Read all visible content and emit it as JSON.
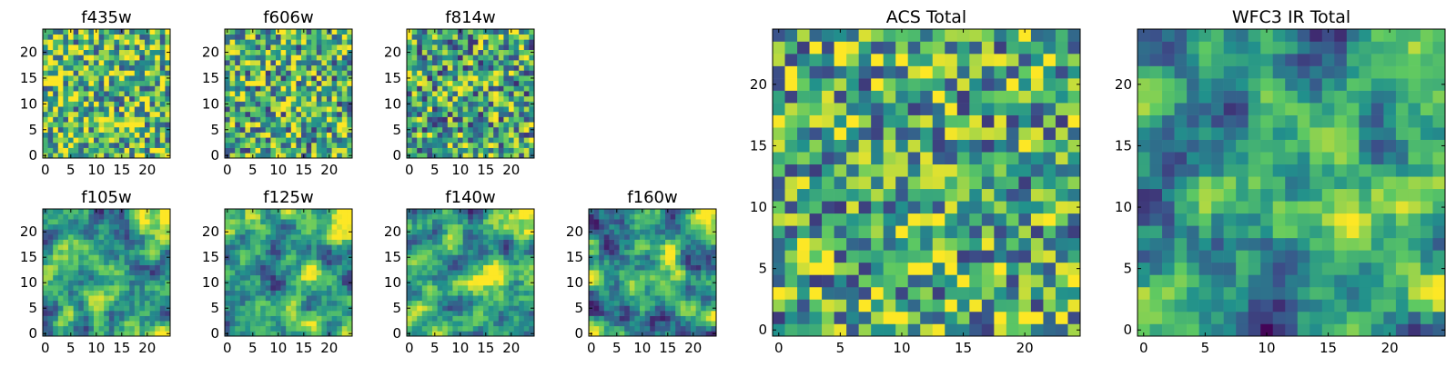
{
  "chart_data": [
    {
      "type": "heatmap",
      "title": "f435w",
      "grid_size": 25,
      "xlim": [
        0,
        24
      ],
      "ylim": [
        0,
        24
      ],
      "xticks": [
        0,
        5,
        10,
        15,
        20
      ],
      "yticks": [
        0,
        5,
        10,
        15,
        20
      ],
      "texture": "noise",
      "mean_level": 0.68
    },
    {
      "type": "heatmap",
      "title": "f606w",
      "grid_size": 25,
      "xlim": [
        0,
        24
      ],
      "ylim": [
        0,
        24
      ],
      "xticks": [
        0,
        5,
        10,
        15,
        20
      ],
      "yticks": [
        0,
        5,
        10,
        15,
        20
      ],
      "texture": "noise",
      "mean_level": 0.62
    },
    {
      "type": "heatmap",
      "title": "f814w",
      "grid_size": 25,
      "xlim": [
        0,
        24
      ],
      "ylim": [
        0,
        24
      ],
      "xticks": [
        0,
        5,
        10,
        15,
        20
      ],
      "yticks": [
        0,
        5,
        10,
        15,
        20
      ],
      "texture": "noise",
      "mean_level": 0.58
    },
    {
      "type": "heatmap",
      "title": "f105w",
      "grid_size": 25,
      "xlim": [
        0,
        24
      ],
      "ylim": [
        0,
        24
      ],
      "xticks": [
        0,
        5,
        10,
        15,
        20
      ],
      "yticks": [
        0,
        5,
        10,
        15,
        20
      ],
      "texture": "smooth",
      "mean_level": 0.5
    },
    {
      "type": "heatmap",
      "title": "f125w",
      "grid_size": 25,
      "xlim": [
        0,
        24
      ],
      "ylim": [
        0,
        24
      ],
      "xticks": [
        0,
        5,
        10,
        15,
        20
      ],
      "yticks": [
        0,
        5,
        10,
        15,
        20
      ],
      "texture": "smooth",
      "mean_level": 0.52
    },
    {
      "type": "heatmap",
      "title": "f140w",
      "grid_size": 25,
      "xlim": [
        0,
        24
      ],
      "ylim": [
        0,
        24
      ],
      "xticks": [
        0,
        5,
        10,
        15,
        20
      ],
      "yticks": [
        0,
        5,
        10,
        15,
        20
      ],
      "texture": "smooth",
      "mean_level": 0.55
    },
    {
      "type": "heatmap",
      "title": "f160w",
      "grid_size": 25,
      "xlim": [
        0,
        24
      ],
      "ylim": [
        0,
        24
      ],
      "xticks": [
        0,
        5,
        10,
        15,
        20
      ],
      "yticks": [
        0,
        5,
        10,
        15,
        20
      ],
      "texture": "smooth",
      "mean_level": 0.5
    },
    {
      "type": "heatmap",
      "title": "ACS Total",
      "grid_size": 25,
      "xlim": [
        0,
        24
      ],
      "ylim": [
        0,
        24
      ],
      "xticks": [
        0,
        5,
        10,
        15,
        20
      ],
      "yticks": [
        0,
        5,
        10,
        15,
        20
      ],
      "texture": "noise",
      "mean_level": 0.62
    },
    {
      "type": "heatmap",
      "title": "WFC3 IR Total",
      "grid_size": 25,
      "xlim": [
        0,
        24
      ],
      "ylim": [
        0,
        24
      ],
      "xticks": [
        0,
        5,
        10,
        15,
        20
      ],
      "yticks": [
        0,
        5,
        10,
        15,
        20
      ],
      "texture": "smooth",
      "mean_level": 0.5
    }
  ],
  "colormap": [
    "#440154",
    "#3b528b",
    "#21918c",
    "#5ec962",
    "#fde725"
  ]
}
